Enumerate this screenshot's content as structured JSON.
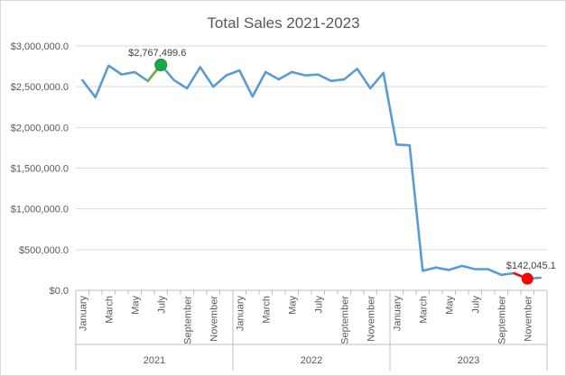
{
  "chart_data": {
    "type": "line",
    "title": "Total Sales 2021-2023",
    "xlabel": "",
    "ylabel": "",
    "ylim": [
      0,
      3000000
    ],
    "yticks": [
      0,
      500000,
      1000000,
      1500000,
      2000000,
      2500000,
      3000000
    ],
    "ytick_labels": [
      "$0.0",
      "$500,000.0",
      "$1,000,000.0",
      "$1,500,000.0",
      "$2,000,000.0",
      "$2,500,000.0",
      "$3,000,000.0"
    ],
    "grid": true,
    "legend": "none",
    "line_color": "#5b9bd5",
    "highlight_color": "#70ad47",
    "years": [
      "2021",
      "2022",
      "2023"
    ],
    "x_tick_labels": [
      "January",
      "March",
      "May",
      "July",
      "September",
      "November",
      "January",
      "March",
      "May",
      "July",
      "September",
      "November",
      "January",
      "March",
      "May",
      "July",
      "September",
      "November"
    ],
    "series": [
      {
        "values": [
          2580000,
          2370000,
          2760000,
          2650000,
          2680000,
          2570000,
          2767499.6,
          2580000,
          2480000,
          2740000,
          2500000,
          2640000,
          2700000,
          2380000,
          2680000,
          2590000,
          2680000,
          2640000,
          2650000,
          2570000,
          2590000,
          2720000,
          2480000,
          2670000,
          1790000,
          1780000,
          240000,
          280000,
          250000,
          300000,
          260000,
          260000,
          190000,
          210000,
          142045.1,
          155000
        ]
      }
    ],
    "max_point": {
      "index": 6,
      "value": 2767499.6,
      "label": "$2,767,499.6",
      "color": "#1aa64a"
    },
    "min_point": {
      "index": 34,
      "value": 142045.1,
      "label": "$142,045.1",
      "color": "#ff0000"
    }
  }
}
